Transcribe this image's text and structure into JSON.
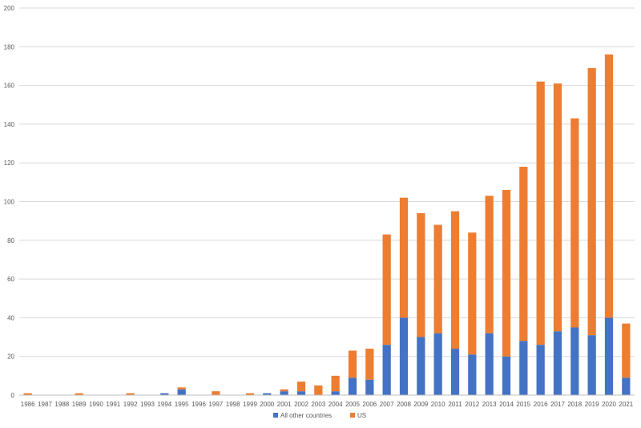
{
  "chart_data": {
    "type": "bar",
    "stacked": true,
    "categories": [
      "1986",
      "1987",
      "1988",
      "1989",
      "1990",
      "1991",
      "1992",
      "1993",
      "1994",
      "1995",
      "1996",
      "1997",
      "1998",
      "1999",
      "2000",
      "2001",
      "2002",
      "2003",
      "2004",
      "2005",
      "2006",
      "2007",
      "2008",
      "2009",
      "2010",
      "2011",
      "2012",
      "2013",
      "2014",
      "2015",
      "2016",
      "2017",
      "2018",
      "2019",
      "2020",
      "2021"
    ],
    "series": [
      {
        "name": "All other countries",
        "color": "#4472C4",
        "values": [
          0,
          0,
          0,
          0,
          0,
          0,
          0,
          0,
          1,
          3,
          0,
          0,
          0,
          0,
          1,
          2,
          2,
          0,
          2,
          9,
          8,
          26,
          40,
          30,
          32,
          24,
          21,
          32,
          20,
          28,
          26,
          33,
          35,
          31,
          40,
          9
        ]
      },
      {
        "name": "US",
        "color": "#ED7D31",
        "values": [
          1,
          0,
          0,
          1,
          0,
          0,
          1,
          0,
          0,
          1,
          0,
          2,
          0,
          1,
          0,
          1,
          5,
          5,
          8,
          14,
          16,
          57,
          62,
          64,
          56,
          71,
          63,
          71,
          86,
          90,
          136,
          128,
          108,
          138,
          136,
          28
        ]
      }
    ],
    "yticks": [
      "0",
      "20",
      "40",
      "60",
      "80",
      "100",
      "120",
      "140",
      "160",
      "180",
      "200"
    ],
    "ylim": [
      0,
      200
    ],
    "grid": true,
    "legend_position": "bottom"
  }
}
